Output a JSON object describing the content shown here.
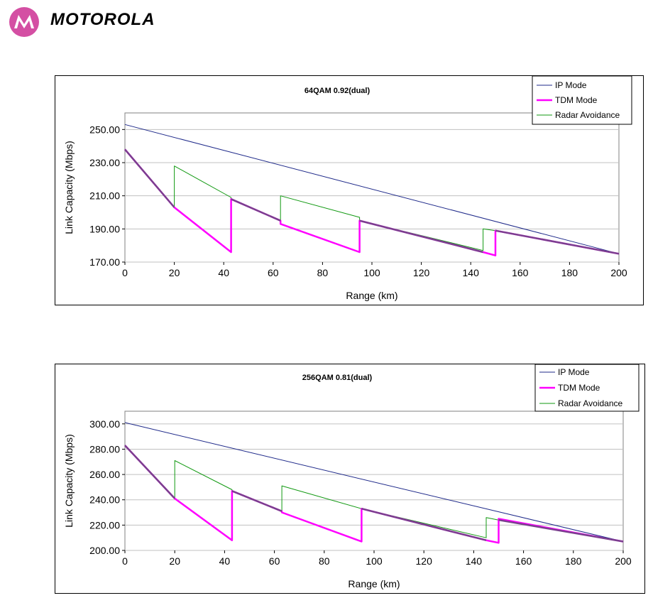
{
  "brand": {
    "name": "MOTOROLA",
    "logo_color": "#d44fa3"
  },
  "colors": {
    "ip_mode": "#1f2a8a",
    "tdm_mode": "#ff00ff",
    "radar_avoidance": "#119911",
    "overlap": "#7b3f8f",
    "grid": "#c0c0c0"
  },
  "chart_data": [
    {
      "type": "line",
      "title": "64QAM 0.92(dual)",
      "xlabel": "Range (km)",
      "ylabel": "Link Capacity (Mbps)",
      "xlim": [
        0,
        200
      ],
      "ylim": [
        170,
        260
      ],
      "xticks": [
        "0",
        "20",
        "40",
        "60",
        "80",
        "100",
        "120",
        "140",
        "160",
        "180",
        "200"
      ],
      "yticks": [
        "170.00",
        "190.00",
        "210.00",
        "230.00",
        "250.00"
      ],
      "ytick_values": [
        170,
        190,
        210,
        230,
        250
      ],
      "grid": "horizontal",
      "legend_position": "top-right",
      "series": [
        {
          "name": "IP Mode",
          "color": "#1f2a8a",
          "width": 1,
          "x": [
            0,
            200
          ],
          "y": [
            253,
            175
          ]
        },
        {
          "name": "TDM Mode",
          "color": "#ff00ff",
          "width": 2.5,
          "x": [
            0,
            20,
            20,
            43,
            43,
            63,
            63,
            95,
            95,
            145,
            145,
            150,
            150,
            200
          ],
          "y": [
            238,
            203,
            203,
            176,
            208,
            195,
            193,
            176,
            195,
            176,
            176,
            174,
            189,
            175
          ]
        },
        {
          "name": "Radar Avoidance",
          "color": "#119911",
          "width": 1,
          "x": [
            0,
            20,
            20,
            43,
            43,
            63,
            63,
            95,
            95,
            145,
            145,
            150,
            150,
            200
          ],
          "y": [
            238,
            203,
            228,
            209,
            208,
            195,
            210,
            197,
            195,
            177,
            190,
            189,
            189,
            175
          ]
        }
      ],
      "overlap_segments": [
        {
          "x": [
            0,
            20
          ],
          "y": [
            238,
            203
          ]
        },
        {
          "x": [
            43,
            63
          ],
          "y": [
            208,
            195
          ]
        },
        {
          "x": [
            95,
            145
          ],
          "y": [
            195,
            176
          ]
        },
        {
          "x": [
            150,
            200
          ],
          "y": [
            189,
            175
          ]
        }
      ]
    },
    {
      "type": "line",
      "title": "256QAM 0.81(dual)",
      "xlabel": "Range (km)",
      "ylabel": "Link Capacity (Mbps)",
      "xlim": [
        0,
        200
      ],
      "ylim": [
        200,
        310
      ],
      "xticks": [
        "0",
        "20",
        "40",
        "60",
        "80",
        "100",
        "120",
        "140",
        "160",
        "180",
        "200"
      ],
      "yticks": [
        "200.00",
        "220.00",
        "240.00",
        "260.00",
        "280.00",
        "300.00"
      ],
      "ytick_values": [
        200,
        220,
        240,
        260,
        280,
        300
      ],
      "grid": "horizontal",
      "legend_position": "top-right",
      "series": [
        {
          "name": "IP Mode",
          "color": "#1f2a8a",
          "width": 1,
          "x": [
            0,
            200
          ],
          "y": [
            301,
            207
          ]
        },
        {
          "name": "TDM Mode",
          "color": "#ff00ff",
          "width": 2.5,
          "x": [
            0,
            20,
            20,
            43,
            43,
            63,
            63,
            95,
            95,
            145,
            145,
            150,
            150,
            200
          ],
          "y": [
            283,
            241,
            241,
            208,
            247,
            231,
            230,
            207,
            233,
            208,
            208,
            206,
            225,
            207
          ]
        },
        {
          "name": "Radar Avoidance",
          "color": "#119911",
          "width": 1,
          "x": [
            0,
            20,
            20,
            43,
            43,
            63,
            63,
            95,
            95,
            145,
            145,
            150,
            150,
            200
          ],
          "y": [
            283,
            241,
            271,
            248,
            247,
            231,
            251,
            233,
            233,
            210,
            226,
            224,
            224,
            207
          ]
        }
      ],
      "overlap_segments": [
        {
          "x": [
            0,
            20
          ],
          "y": [
            283,
            241
          ]
        },
        {
          "x": [
            43,
            63
          ],
          "y": [
            247,
            231
          ]
        },
        {
          "x": [
            95,
            145
          ],
          "y": [
            233,
            208
          ]
        },
        {
          "x": [
            150,
            200
          ],
          "y": [
            224,
            207
          ]
        }
      ]
    }
  ]
}
